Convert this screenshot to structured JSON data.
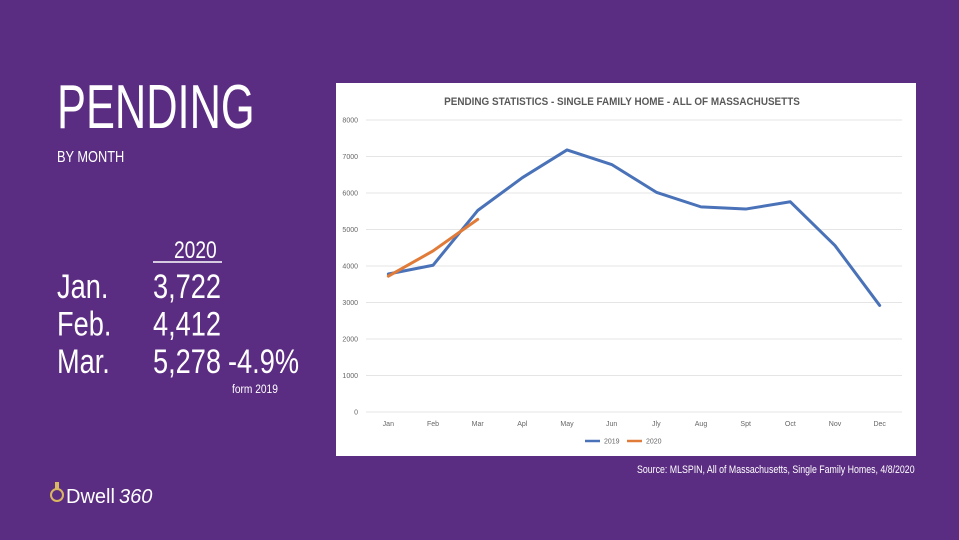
{
  "title": "PENDING",
  "subtitle": "BY MONTH",
  "table": {
    "header": "2020",
    "rows": [
      [
        "Jan.",
        "3,722"
      ],
      [
        "Feb.",
        "4,412"
      ],
      [
        "Mar.",
        "5,278"
      ]
    ]
  },
  "change": "-4.9%",
  "change_note": "form 2019",
  "source": "Source: MLSPIN, All of Massachusetts, Single Family Homes, 4/8/2020",
  "logo": {
    "word": "Dwell",
    "number": "360"
  },
  "chart_data": {
    "type": "line",
    "title": "PENDING STATISTICS - SINGLE FAMILY HOME - ALL OF MASSACHUSETTS",
    "categories": [
      "Jan",
      "Feb",
      "Mar",
      "Apl",
      "May",
      "Jun",
      "Jly",
      "Aug",
      "Spt",
      "Oct",
      "Nov",
      "Dec"
    ],
    "series": [
      {
        "name": "2019",
        "color": "#4a72b8",
        "values": [
          3780,
          4020,
          5520,
          6420,
          7180,
          6780,
          6020,
          5620,
          5560,
          5760,
          4560,
          2920
        ]
      },
      {
        "name": "2020",
        "color": "#e07b39",
        "values": [
          3722,
          4412,
          5278,
          null,
          null,
          null,
          null,
          null,
          null,
          null,
          null,
          null
        ]
      }
    ],
    "ylim": [
      0,
      8000
    ],
    "yticks": [
      0,
      1000,
      2000,
      3000,
      4000,
      5000,
      6000,
      7000,
      8000
    ],
    "grid": true,
    "legend": "bottom"
  }
}
